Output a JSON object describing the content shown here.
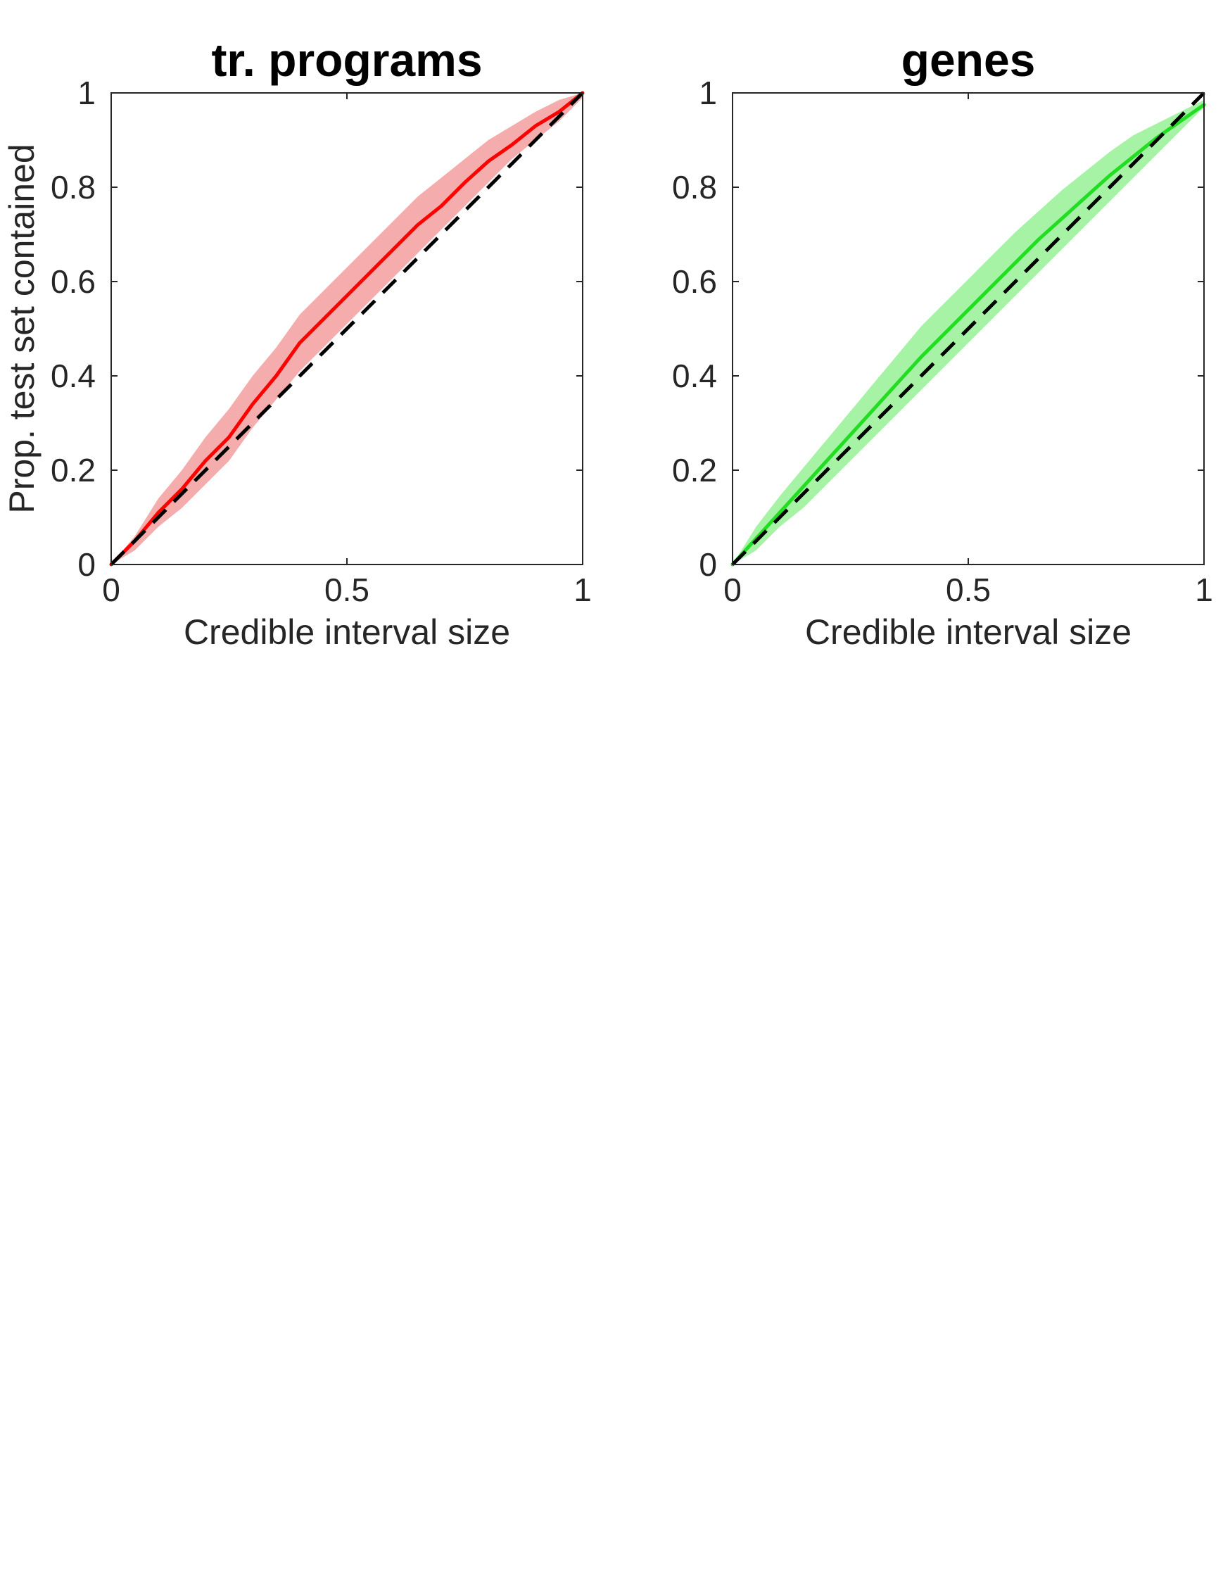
{
  "chart_data": [
    {
      "type": "line",
      "title": "tr. programs",
      "xlabel": "Credible interval size",
      "ylabel": "Prop. test set contained",
      "xlim": [
        0,
        1
      ],
      "ylim": [
        0,
        1
      ],
      "xticks": [
        0,
        0.5,
        1
      ],
      "xtick_labels": [
        "0",
        "0.5",
        "1"
      ],
      "yticks": [
        0,
        0.2,
        0.4,
        0.6,
        0.8,
        1
      ],
      "ytick_labels": [
        "0",
        "0.2",
        "0.4",
        "0.6",
        "0.8",
        "1"
      ],
      "grid": false,
      "series": [
        {
          "kind": "band",
          "color": "#f08080",
          "opacity": 0.65,
          "x": [
            0,
            0.05,
            0.1,
            0.15,
            0.2,
            0.25,
            0.3,
            0.35,
            0.4,
            0.45,
            0.5,
            0.55,
            0.6,
            0.65,
            0.7,
            0.75,
            0.8,
            0.85,
            0.9,
            0.95,
            1
          ],
          "lower": [
            0,
            0.03,
            0.08,
            0.12,
            0.17,
            0.22,
            0.29,
            0.35,
            0.41,
            0.46,
            0.51,
            0.56,
            0.61,
            0.66,
            0.71,
            0.76,
            0.81,
            0.86,
            0.9,
            0.94,
            0.99
          ],
          "upper": [
            0,
            0.06,
            0.14,
            0.2,
            0.27,
            0.33,
            0.4,
            0.46,
            0.53,
            0.58,
            0.63,
            0.68,
            0.73,
            0.78,
            0.82,
            0.86,
            0.9,
            0.93,
            0.96,
            0.985,
            1
          ]
        },
        {
          "kind": "line",
          "color": "#ff0000",
          "x": [
            0,
            0.05,
            0.1,
            0.15,
            0.2,
            0.25,
            0.3,
            0.35,
            0.4,
            0.45,
            0.5,
            0.55,
            0.6,
            0.65,
            0.7,
            0.75,
            0.8,
            0.85,
            0.9,
            0.95,
            1
          ],
          "y": [
            0,
            0.05,
            0.11,
            0.16,
            0.22,
            0.27,
            0.34,
            0.4,
            0.47,
            0.52,
            0.57,
            0.62,
            0.67,
            0.72,
            0.76,
            0.81,
            0.855,
            0.89,
            0.93,
            0.96,
            1
          ]
        },
        {
          "kind": "reference",
          "color": "#000000",
          "dashed": true,
          "x": [
            0,
            1
          ],
          "y": [
            0,
            1
          ]
        }
      ]
    },
    {
      "type": "line",
      "title": "genes",
      "xlabel": "Credible interval size",
      "ylabel": "",
      "xlim": [
        0,
        1
      ],
      "ylim": [
        0,
        1
      ],
      "xticks": [
        0,
        0.5,
        1
      ],
      "xtick_labels": [
        "0",
        "0.5",
        "1"
      ],
      "yticks": [
        0,
        0.2,
        0.4,
        0.6,
        0.8,
        1
      ],
      "ytick_labels": [
        "0",
        "0.2",
        "0.4",
        "0.6",
        "0.8",
        "1"
      ],
      "grid": false,
      "series": [
        {
          "kind": "band",
          "color": "#80ee80",
          "opacity": 0.7,
          "x": [
            0,
            0.05,
            0.1,
            0.15,
            0.2,
            0.25,
            0.3,
            0.35,
            0.4,
            0.45,
            0.5,
            0.55,
            0.6,
            0.65,
            0.7,
            0.75,
            0.8,
            0.85,
            0.9,
            0.95,
            1
          ],
          "lower": [
            0,
            0.03,
            0.08,
            0.12,
            0.17,
            0.22,
            0.27,
            0.32,
            0.37,
            0.42,
            0.47,
            0.52,
            0.57,
            0.62,
            0.67,
            0.72,
            0.77,
            0.82,
            0.87,
            0.92,
            0.97
          ],
          "upper": [
            0,
            0.08,
            0.145,
            0.205,
            0.265,
            0.325,
            0.385,
            0.445,
            0.505,
            0.555,
            0.605,
            0.655,
            0.705,
            0.75,
            0.795,
            0.835,
            0.875,
            0.91,
            0.935,
            0.96,
            0.985
          ]
        },
        {
          "kind": "line",
          "color": "#22dd22",
          "x": [
            0,
            0.05,
            0.1,
            0.15,
            0.2,
            0.25,
            0.3,
            0.35,
            0.4,
            0.45,
            0.5,
            0.55,
            0.6,
            0.65,
            0.7,
            0.75,
            0.8,
            0.85,
            0.9,
            0.95,
            1
          ],
          "y": [
            0,
            0.055,
            0.11,
            0.165,
            0.22,
            0.275,
            0.33,
            0.385,
            0.44,
            0.49,
            0.54,
            0.59,
            0.64,
            0.69,
            0.735,
            0.78,
            0.825,
            0.865,
            0.905,
            0.94,
            0.975
          ]
        },
        {
          "kind": "reference",
          "color": "#000000",
          "dashed": true,
          "x": [
            0,
            1
          ],
          "y": [
            0,
            1
          ]
        }
      ]
    }
  ]
}
